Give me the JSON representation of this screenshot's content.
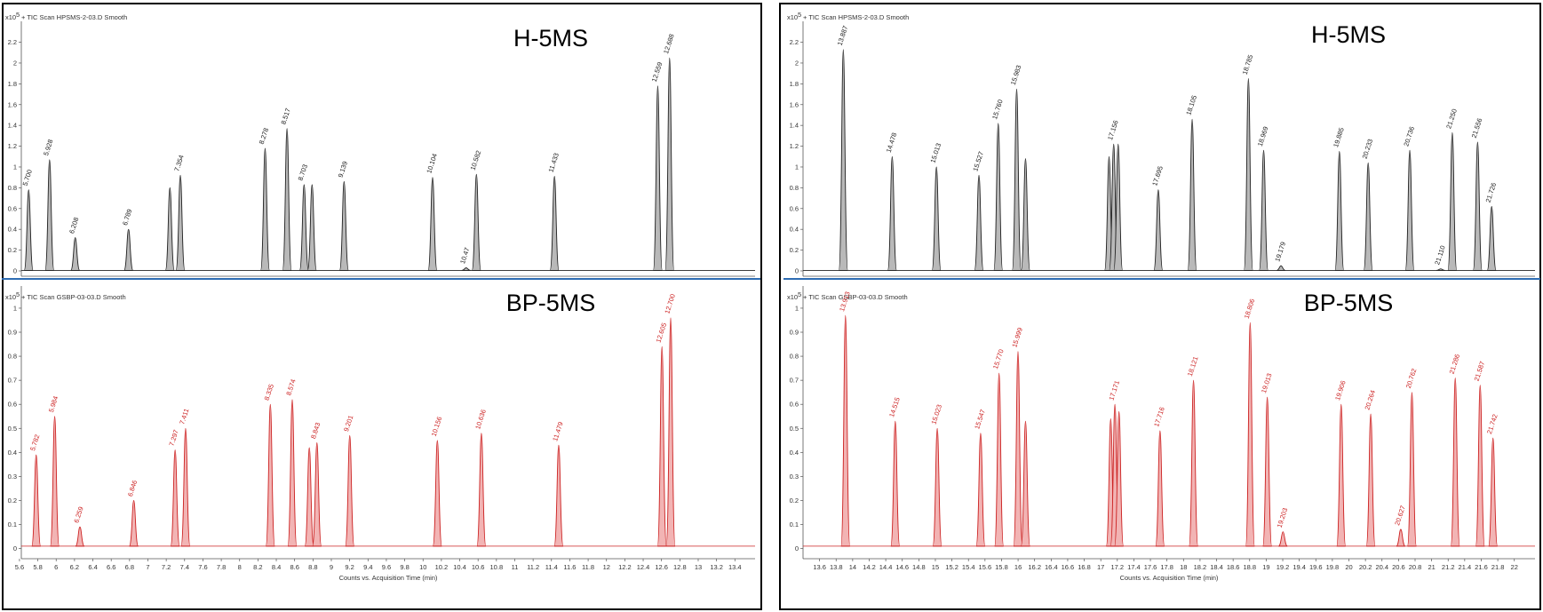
{
  "chart_data": [
    {
      "type": "line",
      "panel": "left",
      "title": "H-5MS",
      "header": "+ TIC Scan HPSMS-2-03.D  Smooth",
      "yscale_label": "x10",
      "yscale_exp": "5",
      "ylim": [
        0,
        2.35
      ],
      "xlim": [
        5.62,
        13.62
      ],
      "yticks": [
        "0",
        "0.2",
        "0.4",
        "0.6",
        "0.8",
        "1",
        "1.2",
        "1.4",
        "1.6",
        "1.8",
        "2",
        "2.2"
      ],
      "color": "#222222",
      "fill": "#b9b9b9",
      "peaks": [
        {
          "label": "5.700",
          "x": 5.7,
          "y": 0.78
        },
        {
          "label": "5.928",
          "x": 5.928,
          "y": 1.07
        },
        {
          "label": "6.208",
          "x": 6.208,
          "y": 0.32
        },
        {
          "label": "6.789",
          "x": 6.789,
          "y": 0.4
        },
        {
          "label": "",
          "x": 7.24,
          "y": 0.8
        },
        {
          "label": "7.354",
          "x": 7.354,
          "y": 0.92
        },
        {
          "label": "8.278",
          "x": 8.278,
          "y": 1.18
        },
        {
          "label": "8.517",
          "x": 8.517,
          "y": 1.37
        },
        {
          "label": "8.703",
          "x": 8.703,
          "y": 0.83
        },
        {
          "label": "",
          "x": 8.79,
          "y": 0.83
        },
        {
          "label": "9.139",
          "x": 9.139,
          "y": 0.86
        },
        {
          "label": "10.104",
          "x": 10.104,
          "y": 0.9
        },
        {
          "label": "10.47",
          "x": 10.47,
          "y": 0.03
        },
        {
          "label": "10.582",
          "x": 10.582,
          "y": 0.93
        },
        {
          "label": "11.433",
          "x": 11.433,
          "y": 0.91
        },
        {
          "label": "12.559",
          "x": 12.559,
          "y": 1.78
        },
        {
          "label": "12.688",
          "x": 12.688,
          "y": 2.05
        }
      ]
    },
    {
      "type": "line",
      "panel": "left",
      "title": "BP-5MS",
      "header": "+ TIC Scan GSBP-03-03.D  Smooth",
      "yscale_label": "x10",
      "yscale_exp": "5",
      "ylim": [
        -0.02,
        1.07
      ],
      "xlim": [
        5.62,
        13.62
      ],
      "yticks": [
        "0",
        "0.1",
        "0.2",
        "0.3",
        "0.4",
        "0.5",
        "0.6",
        "0.7",
        "0.8",
        "0.9",
        "1"
      ],
      "xticks": [
        "5.6",
        "5.8",
        "6",
        "6.2",
        "6.4",
        "6.6",
        "6.8",
        "7",
        "7.2",
        "7.4",
        "7.6",
        "7.8",
        "8",
        "8.2",
        "8.4",
        "8.6",
        "8.8",
        "9",
        "9.2",
        "9.4",
        "9.6",
        "9.8",
        "10",
        "10.2",
        "10.4",
        "10.6",
        "10.8",
        "11",
        "11.2",
        "11.4",
        "11.6",
        "11.8",
        "12",
        "12.2",
        "12.4",
        "12.6",
        "12.8",
        "13",
        "13.2",
        "13.4"
      ],
      "xlabel": "Counts vs. Acquisition Time (min)",
      "color": "#cc2222",
      "fill": "#f2b4b4",
      "peaks": [
        {
          "label": "5.782",
          "x": 5.782,
          "y": 0.39
        },
        {
          "label": "5.984",
          "x": 5.984,
          "y": 0.55
        },
        {
          "label": "6.259",
          "x": 6.259,
          "y": 0.09
        },
        {
          "label": "6.846",
          "x": 6.846,
          "y": 0.2
        },
        {
          "label": "7.297",
          "x": 7.297,
          "y": 0.41
        },
        {
          "label": "7.411",
          "x": 7.411,
          "y": 0.5
        },
        {
          "label": "8.335",
          "x": 8.335,
          "y": 0.6
        },
        {
          "label": "8.574",
          "x": 8.574,
          "y": 0.62
        },
        {
          "label": "",
          "x": 8.76,
          "y": 0.42
        },
        {
          "label": "8.843",
          "x": 8.843,
          "y": 0.44
        },
        {
          "label": "9.201",
          "x": 9.201,
          "y": 0.47
        },
        {
          "label": "10.156",
          "x": 10.156,
          "y": 0.45
        },
        {
          "label": "10.636",
          "x": 10.636,
          "y": 0.48
        },
        {
          "label": "11.479",
          "x": 11.479,
          "y": 0.43
        },
        {
          "label": "12.605",
          "x": 12.605,
          "y": 0.84
        },
        {
          "label": "12.700",
          "x": 12.7,
          "y": 0.96
        }
      ]
    },
    {
      "type": "line",
      "panel": "right",
      "title": "H-5MS",
      "header": "+ TIC Scan HPSMS-2-03.D  Smooth",
      "yscale_label": "x10",
      "yscale_exp": "5",
      "ylim": [
        0,
        2.35
      ],
      "xlim": [
        13.4,
        22.25
      ],
      "yticks": [
        "0",
        "0.2",
        "0.4",
        "0.6",
        "0.8",
        "1",
        "1.2",
        "1.4",
        "1.6",
        "1.8",
        "2",
        "2.2"
      ],
      "color": "#222222",
      "fill": "#b9b9b9",
      "peaks": [
        {
          "label": "13.887",
          "x": 13.887,
          "y": 2.13
        },
        {
          "label": "14.478",
          "x": 14.478,
          "y": 1.1
        },
        {
          "label": "15.013",
          "x": 15.013,
          "y": 1.0
        },
        {
          "label": "15.527",
          "x": 15.527,
          "y": 0.92
        },
        {
          "label": "15.760",
          "x": 15.76,
          "y": 1.42
        },
        {
          "label": "15.983",
          "x": 15.983,
          "y": 1.75
        },
        {
          "label": "",
          "x": 16.09,
          "y": 1.08
        },
        {
          "label": "",
          "x": 17.1,
          "y": 1.1
        },
        {
          "label": "17.156",
          "x": 17.156,
          "y": 1.22
        },
        {
          "label": "",
          "x": 17.21,
          "y": 1.22
        },
        {
          "label": "17.695",
          "x": 17.695,
          "y": 0.78
        },
        {
          "label": "18.105",
          "x": 18.105,
          "y": 1.46
        },
        {
          "label": "18.785",
          "x": 18.785,
          "y": 1.85
        },
        {
          "label": "18.969",
          "x": 18.969,
          "y": 1.16
        },
        {
          "label": "19.179",
          "x": 19.179,
          "y": 0.05
        },
        {
          "label": "19.885",
          "x": 19.885,
          "y": 1.15
        },
        {
          "label": "20.233",
          "x": 20.233,
          "y": 1.04
        },
        {
          "label": "20.736",
          "x": 20.736,
          "y": 1.16
        },
        {
          "label": "21.110",
          "x": 21.11,
          "y": 0.02
        },
        {
          "label": "21.250",
          "x": 21.25,
          "y": 1.33
        },
        {
          "label": "21.556",
          "x": 21.556,
          "y": 1.24
        },
        {
          "label": "21.726",
          "x": 21.726,
          "y": 0.62
        }
      ]
    },
    {
      "type": "line",
      "panel": "right",
      "title": "BP-5MS",
      "header": "+ TIC Scan GSBP-03-03.D  Smooth",
      "yscale_label": "x10",
      "yscale_exp": "5",
      "ylim": [
        -0.02,
        1.07
      ],
      "xlim": [
        13.4,
        22.25
      ],
      "yticks": [
        "0",
        "0.1",
        "0.2",
        "0.3",
        "0.4",
        "0.5",
        "0.6",
        "0.7",
        "0.8",
        "0.9",
        "1"
      ],
      "xticks": [
        "13.6",
        "13.8",
        "14",
        "14.2",
        "14.4",
        "14.6",
        "14.8",
        "15",
        "15.2",
        "15.4",
        "15.6",
        "15.8",
        "16",
        "16.2",
        "16.4",
        "16.6",
        "16.8",
        "17",
        "17.2",
        "17.4",
        "17.6",
        "17.8",
        "18",
        "18.2",
        "18.4",
        "18.6",
        "18.8",
        "19",
        "19.2",
        "19.4",
        "19.6",
        "19.8",
        "20",
        "20.2",
        "20.4",
        "20.6",
        "20.8",
        "21",
        "21.2",
        "21.4",
        "21.6",
        "21.8",
        "22"
      ],
      "xlabel": "Counts vs. Acquisition Time (min)",
      "color": "#cc2222",
      "fill": "#f2b4b4",
      "peaks": [
        {
          "label": "13.913",
          "x": 13.913,
          "y": 0.97
        },
        {
          "label": "14.515",
          "x": 14.515,
          "y": 0.53
        },
        {
          "label": "15.023",
          "x": 15.023,
          "y": 0.5
        },
        {
          "label": "15.547",
          "x": 15.547,
          "y": 0.48
        },
        {
          "label": "15.770",
          "x": 15.77,
          "y": 0.73
        },
        {
          "label": "15.999",
          "x": 15.999,
          "y": 0.82
        },
        {
          "label": "",
          "x": 16.09,
          "y": 0.53
        },
        {
          "label": "",
          "x": 17.12,
          "y": 0.54
        },
        {
          "label": "17.171",
          "x": 17.171,
          "y": 0.6
        },
        {
          "label": "",
          "x": 17.22,
          "y": 0.57
        },
        {
          "label": "17.716",
          "x": 17.716,
          "y": 0.49
        },
        {
          "label": "18.121",
          "x": 18.121,
          "y": 0.7
        },
        {
          "label": "18.806",
          "x": 18.806,
          "y": 0.94
        },
        {
          "label": "19.013",
          "x": 19.013,
          "y": 0.63
        },
        {
          "label": "19.203",
          "x": 19.203,
          "y": 0.07
        },
        {
          "label": "19.906",
          "x": 19.906,
          "y": 0.6
        },
        {
          "label": "20.264",
          "x": 20.264,
          "y": 0.56
        },
        {
          "label": "20.762",
          "x": 20.762,
          "y": 0.65
        },
        {
          "label": "20.627",
          "x": 20.627,
          "y": 0.08
        },
        {
          "label": "21.286",
          "x": 21.286,
          "y": 0.71
        },
        {
          "label": "21.587",
          "x": 21.587,
          "y": 0.68
        },
        {
          "label": "21.742",
          "x": 21.742,
          "y": 0.46
        }
      ]
    }
  ]
}
